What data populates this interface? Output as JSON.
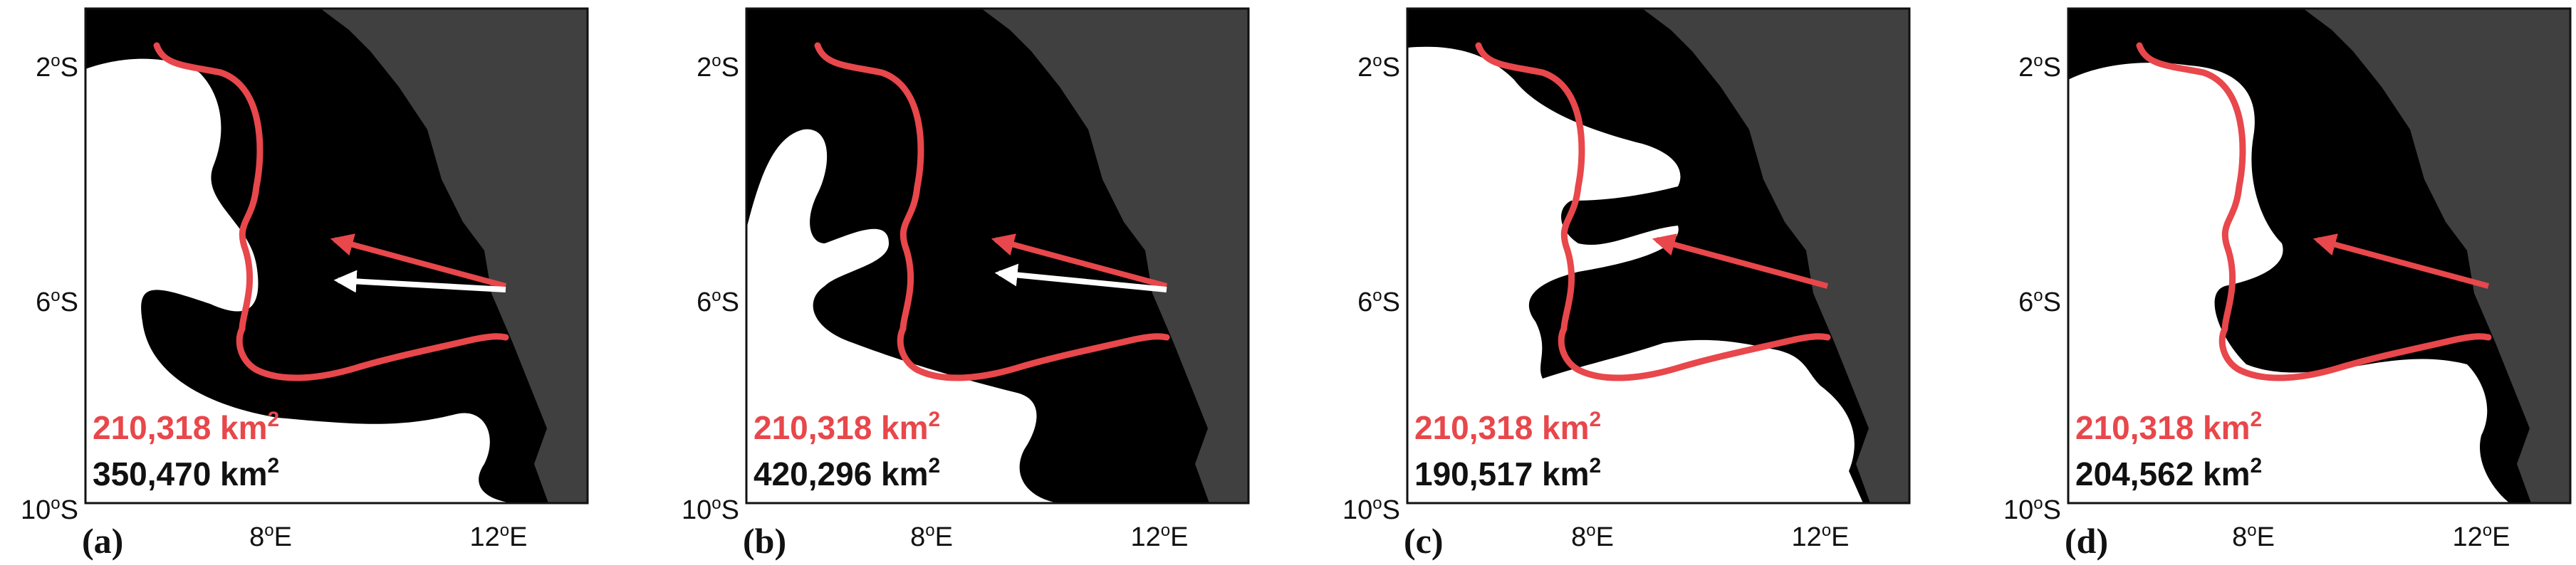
{
  "colors": {
    "land": "#404040",
    "water": "#000000",
    "region": "#ffffff",
    "red": "#e8474b",
    "frame": "#111111"
  },
  "axes": {
    "lat_ticks": [
      {
        "value": "2",
        "sup": "o",
        "hemi": "S"
      },
      {
        "value": "6",
        "sup": "o",
        "hemi": "S"
      },
      {
        "value": "10",
        "sup": "o",
        "hemi": "S"
      }
    ],
    "lon_ticks": [
      {
        "value": "8",
        "sup": "o",
        "hemi": "E"
      },
      {
        "value": "12",
        "sup": "o",
        "hemi": "E"
      }
    ]
  },
  "panels": [
    {
      "label": "(a)",
      "red_area": "210,318 km",
      "black_area": "350,470 km",
      "unit_sup": "2",
      "white_arrow": true
    },
    {
      "label": "(b)",
      "red_area": "210,318 km",
      "black_area": "420,296 km",
      "unit_sup": "2",
      "white_arrow": true
    },
    {
      "label": "(c)",
      "red_area": "210,318 km",
      "black_area": "190,517 km",
      "unit_sup": "2",
      "white_arrow": false
    },
    {
      "label": "(d)",
      "red_area": "210,318 km",
      "black_area": "204,562 km",
      "unit_sup": "2",
      "white_arrow": false
    }
  ]
}
